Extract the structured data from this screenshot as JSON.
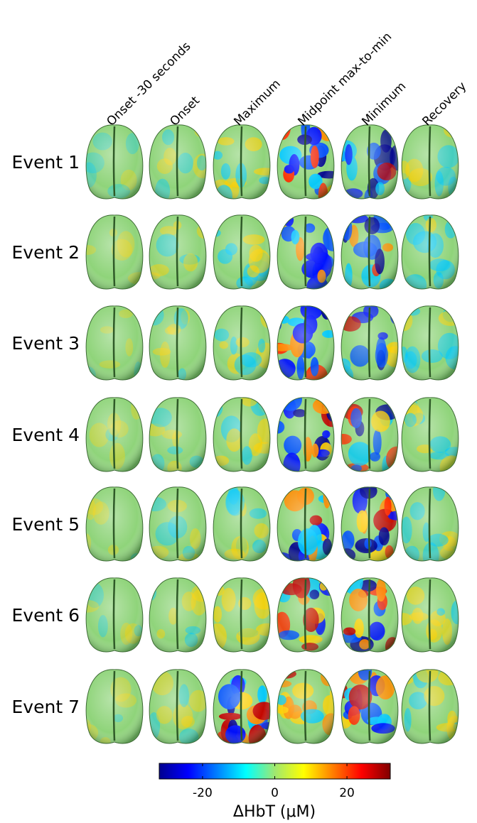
{
  "column_headers": [
    "Onset -30 seconds",
    "Onset",
    "Maximum",
    "Midpoint max-to-min",
    "Minimum",
    "Recovery"
  ],
  "row_labels": [
    "Event 1",
    "Event 2",
    "Event 3",
    "Event 4",
    "Event 5",
    "Event 6",
    "Event 7"
  ],
  "colorbar": {
    "label": "ΔHbT (μM)",
    "lim": [
      -32,
      32
    ],
    "ticks": [
      -20,
      0,
      20
    ]
  }
}
